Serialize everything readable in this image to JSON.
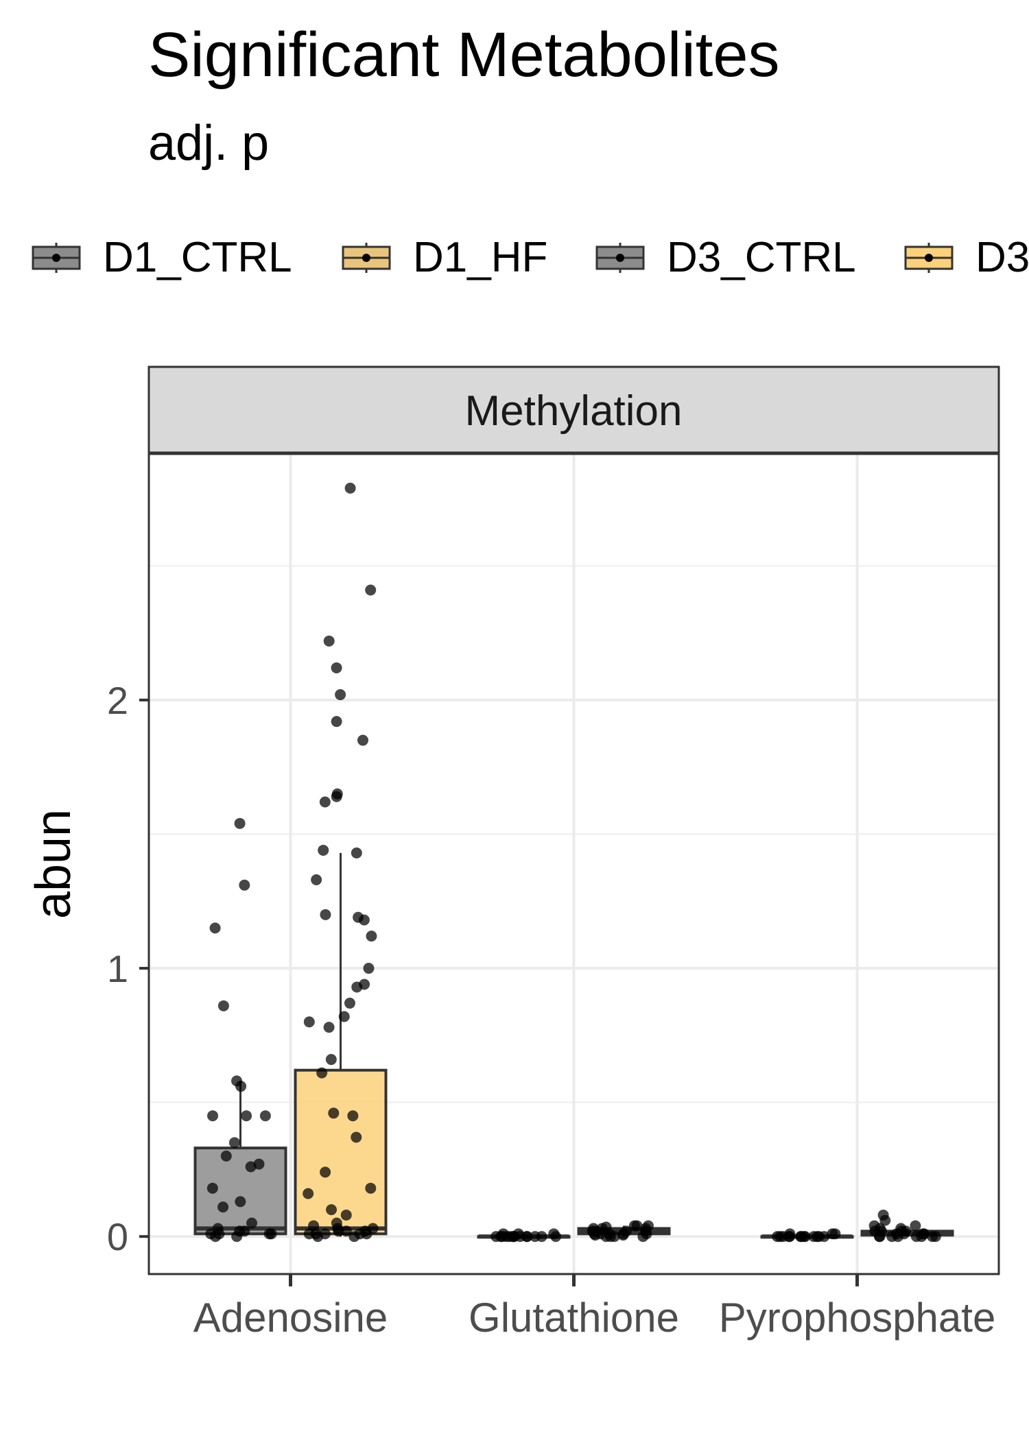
{
  "chart_data": {
    "type": "box",
    "title": "Significant Metabolites",
    "subtitle": "adj. p",
    "ylabel": "abun",
    "xlabel": "",
    "facet": "Methylation",
    "categories": [
      "Adenosine",
      "Glutathione",
      "Pyrophosphate"
    ],
    "yticks": [
      0,
      1,
      2
    ],
    "ylim": [
      -0.14,
      2.92
    ],
    "grid": true,
    "legend_position": "top",
    "legend": [
      "D1_CTRL",
      "D1_HF",
      "D3_CTRL",
      "D3"
    ],
    "series": [
      {
        "name": "D1_CTRL",
        "color": "#8c8c8c",
        "boxes": [
          {
            "category": "Adenosine",
            "q1": 0.01,
            "median": 0.03,
            "q3": 0.33,
            "whisker_low": 0.0,
            "whisker_high": 0.58
          },
          {
            "category": "Glutathione",
            "q1": 0.0,
            "median": 0.0,
            "q3": 0.0,
            "whisker_low": 0.0,
            "whisker_high": 0.0
          },
          {
            "category": "Pyrophosphate",
            "q1": 0.0,
            "median": 0.0,
            "q3": 0.0,
            "whisker_low": 0.0,
            "whisker_high": 0.0
          }
        ],
        "points": [
          {
            "category": "Adenosine",
            "values": [
              1.54,
              1.31,
              1.15,
              0.86,
              0.58,
              0.56,
              0.45,
              0.45,
              0.45,
              0.35,
              0.3,
              0.27,
              0.26,
              0.18,
              0.13,
              0.11,
              0.05,
              0.03,
              0.02,
              0.02,
              0.01,
              0.01,
              0.01,
              0.01,
              0.0,
              0.0
            ]
          },
          {
            "category": "Glutathione",
            "values": [
              0.01,
              0.01,
              0.01,
              0.0,
              0.0,
              0.0,
              0.0,
              0.0,
              0.0,
              0.0,
              0.0,
              0.0,
              0.0,
              0.0,
              0.0,
              0.0,
              0.0
            ]
          },
          {
            "category": "Pyrophosphate",
            "values": [
              0.01,
              0.01,
              0.01,
              0.0,
              0.0,
              0.0,
              0.0,
              0.0,
              0.0,
              0.0,
              0.0,
              0.0,
              0.0,
              0.0,
              0.0,
              0.0
            ]
          }
        ]
      },
      {
        "name": "D1_HF",
        "color": "#fbd17a",
        "boxes": [
          {
            "category": "Adenosine",
            "q1": 0.01,
            "median": 0.03,
            "q3": 0.62,
            "whisker_low": 0.0,
            "whisker_high": 1.43
          },
          {
            "category": "Glutathione",
            "q1": 0.01,
            "median": 0.02,
            "q3": 0.03,
            "whisker_low": 0.0,
            "whisker_high": 0.04
          },
          {
            "category": "Pyrophosphate",
            "q1": 0.005,
            "median": 0.01,
            "q3": 0.02,
            "whisker_low": 0.0,
            "whisker_high": 0.03
          }
        ],
        "points": [
          {
            "category": "Adenosine",
            "values": [
              2.79,
              2.41,
              2.22,
              2.12,
              2.02,
              1.92,
              1.85,
              1.65,
              1.64,
              1.62,
              1.44,
              1.43,
              1.33,
              1.2,
              1.19,
              1.18,
              1.12,
              1.0,
              0.94,
              0.93,
              0.87,
              0.82,
              0.8,
              0.78,
              0.66,
              0.61,
              0.46,
              0.45,
              0.37,
              0.24,
              0.18,
              0.16,
              0.1,
              0.08,
              0.05,
              0.04,
              0.03,
              0.03,
              0.02,
              0.02,
              0.02,
              0.01,
              0.01,
              0.01,
              0.01,
              0.01,
              0.0,
              0.0
            ]
          },
          {
            "category": "Glutathione",
            "values": [
              0.04,
              0.04,
              0.04,
              0.035,
              0.03,
              0.03,
              0.03,
              0.02,
              0.02,
              0.02,
              0.02,
              0.01,
              0.01,
              0.01,
              0.01,
              0.01,
              0.005,
              0.005,
              0.0,
              0.0,
              0.0,
              0.0
            ]
          },
          {
            "category": "Pyrophosphate",
            "values": [
              0.08,
              0.06,
              0.04,
              0.04,
              0.03,
              0.03,
              0.02,
              0.02,
              0.02,
              0.02,
              0.01,
              0.01,
              0.01,
              0.01,
              0.0,
              0.0,
              0.0,
              0.0,
              0.0,
              0.0,
              0.0,
              0.0
            ]
          }
        ]
      }
    ]
  }
}
